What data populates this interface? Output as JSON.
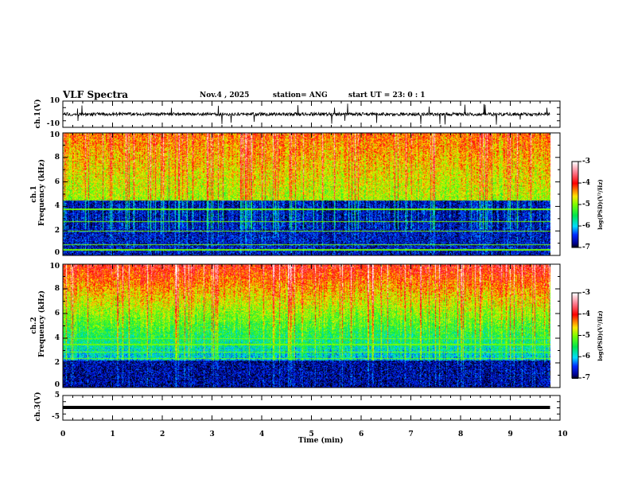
{
  "header": {
    "title": "VLF Spectra",
    "date": "Nov.4  , 2025",
    "station": "station= ANG",
    "start": "start  UT  =   23: 0  : 1"
  },
  "colors": {
    "axis": "#000000",
    "background": "#ffffff"
  },
  "chart_data": [
    {
      "type": "line",
      "name": "ch1 waveform",
      "ylabel": "ch.1(V)",
      "ylim": [
        -10,
        10
      ],
      "yticks": [
        "10",
        "-10"
      ],
      "xlim": [
        0,
        10
      ],
      "baseline": 0,
      "note": "noise ~±2 V with spikes to ±8 V"
    },
    {
      "type": "heatmap",
      "name": "ch1 spectrogram",
      "ylabel": "ch.1\nFrequency  (kHz)",
      "ylim": [
        0,
        10
      ],
      "yticks": [
        "0",
        "2",
        "4",
        "6",
        "8",
        "10"
      ],
      "xlim": [
        0,
        10
      ],
      "data_until_min": 9.8,
      "colorbar": {
        "label": "log(PSD)(V²/Hz)",
        "range": [
          -7,
          -3
        ],
        "ticks": [
          "-3",
          "-4",
          "-5",
          "-6",
          "-7"
        ]
      }
    },
    {
      "type": "heatmap",
      "name": "ch2 spectrogram",
      "ylabel": "ch.2\nFrequency  (kHz)",
      "ylim": [
        0,
        10
      ],
      "yticks": [
        "0",
        "2",
        "4",
        "6",
        "8",
        "10"
      ],
      "xlim": [
        0,
        10
      ],
      "data_until_min": 9.8,
      "colorbar": {
        "label": "log(PSD)(V²/Hz)",
        "range": [
          -7,
          -3
        ],
        "ticks": [
          "-3",
          "-4",
          "-5",
          "-6",
          "-7"
        ]
      }
    },
    {
      "type": "line",
      "name": "ch3 waveform",
      "ylabel": "ch.3(V)",
      "ylim": [
        -5,
        5
      ],
      "yticks": [
        "5",
        "-5"
      ],
      "xlim": [
        0,
        10
      ],
      "constant_value": 0
    },
    {
      "xlabel": "Time  (min)",
      "xticks": [
        "0",
        "1",
        "2",
        "3",
        "4",
        "5",
        "6",
        "7",
        "8",
        "9",
        "10"
      ]
    }
  ]
}
